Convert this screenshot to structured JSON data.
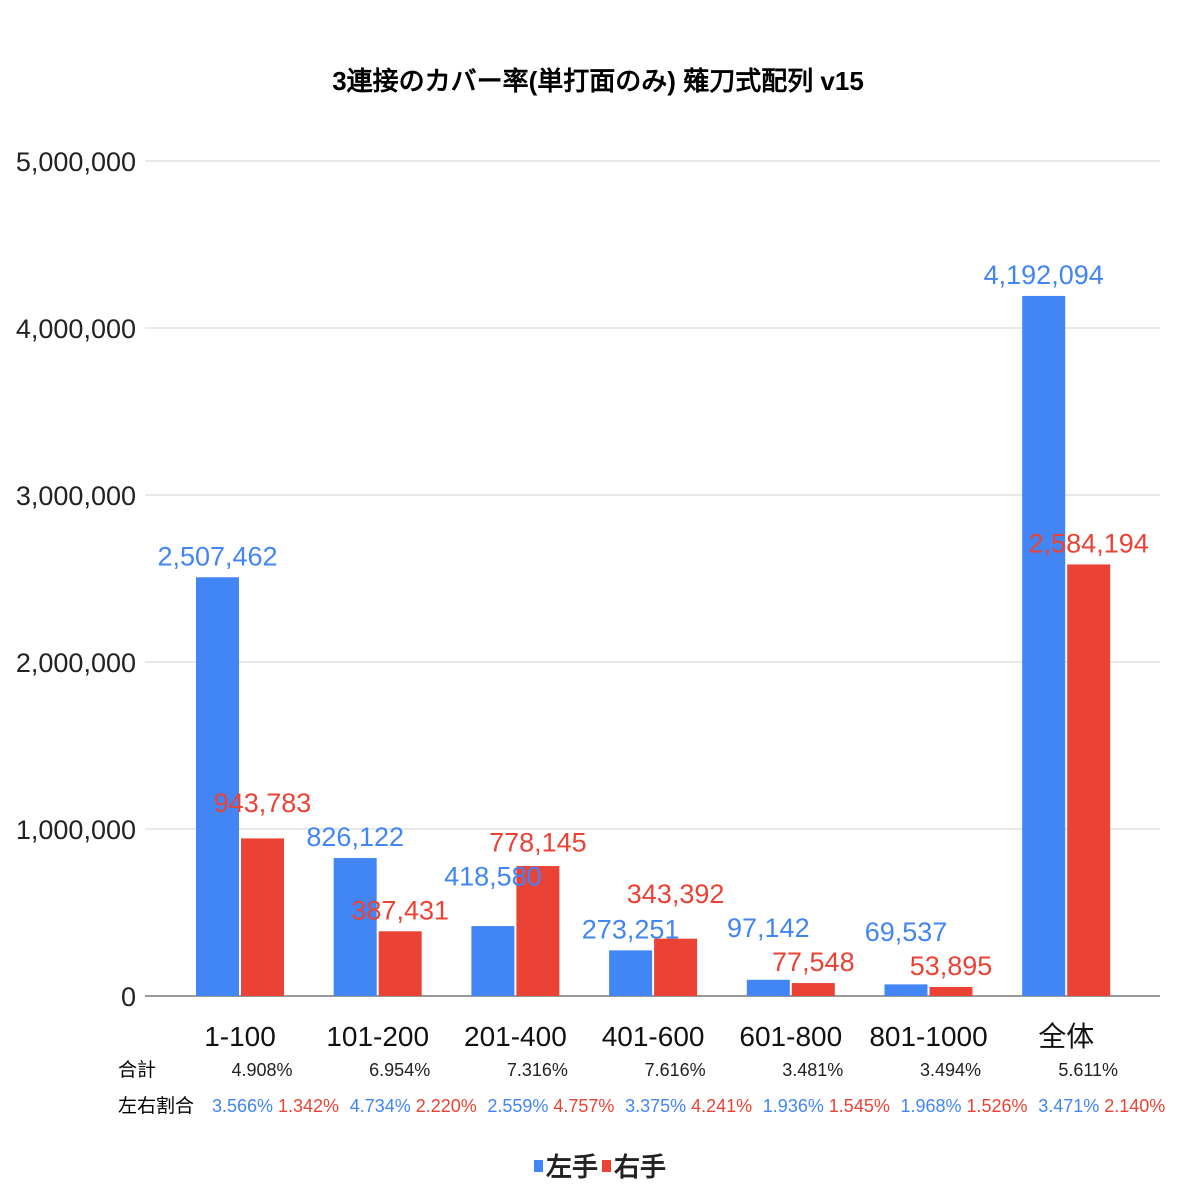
{
  "chart_data": {
    "type": "bar",
    "title": "3連接のカバー率(単打面のみ) 薙刀式配列 v15",
    "xlabel": "",
    "ylabel": "",
    "ylim": [
      0,
      5000000
    ],
    "yticks": [
      0,
      1000000,
      2000000,
      3000000,
      4000000,
      5000000
    ],
    "ytick_labels": [
      "0",
      "1,000,000",
      "2,000,000",
      "3,000,000",
      "4,000,000",
      "5,000,000"
    ],
    "grid": true,
    "legend_position": "bottom",
    "categories": [
      "1-100",
      "101-200",
      "201-400",
      "401-600",
      "601-800",
      "801-1000",
      "全体"
    ],
    "series": [
      {
        "name": "左手",
        "color": "#4285f4",
        "values": [
          2507462,
          826122,
          418580,
          273251,
          97142,
          69537,
          4192094
        ],
        "labels": [
          "2,507,462",
          "826,122",
          "418,580",
          "273,251",
          "97,142",
          "69,537",
          "4,192,094"
        ]
      },
      {
        "name": "右手",
        "color": "#ea4335",
        "values": [
          943783,
          387431,
          778145,
          343392,
          77548,
          53895,
          2584194
        ],
        "labels": [
          "943,783",
          "387,431",
          "778,145",
          "343,392",
          "77,548",
          "53,895",
          "2,584,194"
        ]
      }
    ],
    "table": {
      "total_label": "合計",
      "ratio_label": "左右割合",
      "totals": [
        "4.908%",
        "6.954%",
        "7.316%",
        "7.616%",
        "3.481%",
        "3.494%",
        "5.611%"
      ],
      "left_ratio": [
        "3.566%",
        "4.734%",
        "2.559%",
        "3.375%",
        "1.936%",
        "1.968%",
        "3.471%"
      ],
      "right_ratio": [
        "1.342%",
        "2.220%",
        "4.757%",
        "4.241%",
        "1.545%",
        "1.526%",
        "2.140%"
      ]
    }
  }
}
